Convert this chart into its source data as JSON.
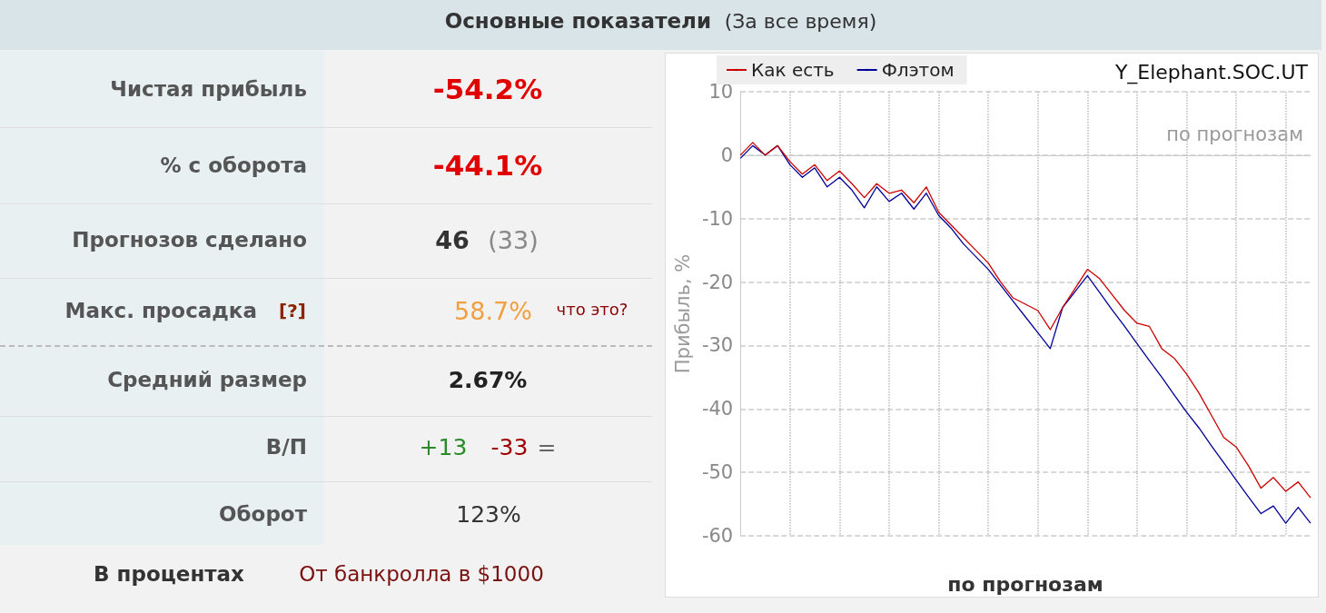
{
  "chart_data": [
    {
      "type": "other",
      "title": "Основные показатели",
      "subtitle": "(За все время)",
      "annotations": [
        "Чистая прибыль",
        "-54.2%",
        "% с оборота",
        "-44.1%",
        "Прогнозов сделано",
        "46",
        "(33)",
        "Макс. просадка",
        "[?]",
        "58.7%",
        "что это?",
        "Средний размер",
        "2.67%",
        "В/П",
        "+13",
        "-33",
        "=",
        "Оборот",
        "123%",
        "В процентах",
        "От банкролла в $1000"
      ]
    },
    {
      "type": "line",
      "subtitle": "Y_Elephant.SOC.UT",
      "xlabel": "по прогнозам",
      "ylabel": "Прибыль, %",
      "annotations": [
        "по прогнозам"
      ],
      "categories": [
        null,
        null,
        null,
        null,
        null,
        null,
        null,
        null,
        null,
        null,
        null,
        null,
        null,
        null,
        null,
        null,
        null,
        null,
        null,
        null,
        null,
        null,
        null,
        null,
        null,
        null,
        null,
        null,
        null,
        null,
        null,
        null,
        null,
        null,
        null,
        null,
        null,
        null,
        null,
        null,
        null,
        null,
        null,
        null,
        null,
        null,
        null
      ],
      "series": [
        {
          "name": "Как есть",
          "color": "#cc0000",
          "values": [
            0,
            2,
            0,
            1.5,
            -1,
            -3,
            -1.5,
            -4,
            -2.5,
            -4.5,
            -6.7,
            -4.5,
            -6,
            -5.5,
            -7.5,
            -5,
            -9,
            -11,
            -13,
            -15,
            -17,
            -20,
            -22.5,
            -23.5,
            -24.5,
            -27.5,
            -24,
            -21,
            -18,
            -19.5,
            -22,
            -24.5,
            -26.5,
            -27,
            -30.5,
            -32,
            -34.5,
            -37.5,
            -41,
            -44.5,
            -46,
            -49,
            -52.5,
            -50.8,
            -53,
            -51.5,
            -54
          ]
        },
        {
          "name": "Флэтом",
          "color": "#000099",
          "values": [
            -0.5,
            1.5,
            0,
            1.5,
            -1.5,
            -3.5,
            -2,
            -5,
            -3.5,
            -5.5,
            -8.3,
            -5,
            -7.3,
            -6,
            -8.5,
            -6,
            -9.5,
            -11.5,
            -14,
            -16,
            -18,
            -20.5,
            -23,
            -25.5,
            -28,
            -30.5,
            -24,
            -21.5,
            -19,
            -21.7,
            -24.4,
            -27,
            -29.7,
            -32.4,
            -35,
            -37.8,
            -40.5,
            -43,
            -45.8,
            -48.5,
            -51.2,
            -53.9,
            -56.5,
            -55.3,
            -58,
            -55.5,
            -58
          ]
        }
      ],
      "ylim": [
        -60,
        10
      ],
      "yticks": [
        -60,
        -50,
        -40,
        -30,
        -20,
        -10,
        0,
        10
      ],
      "tick_labels": "y",
      "grid": true,
      "legend": "top left",
      "marker": "none",
      "line_style": "solid"
    }
  ]
}
